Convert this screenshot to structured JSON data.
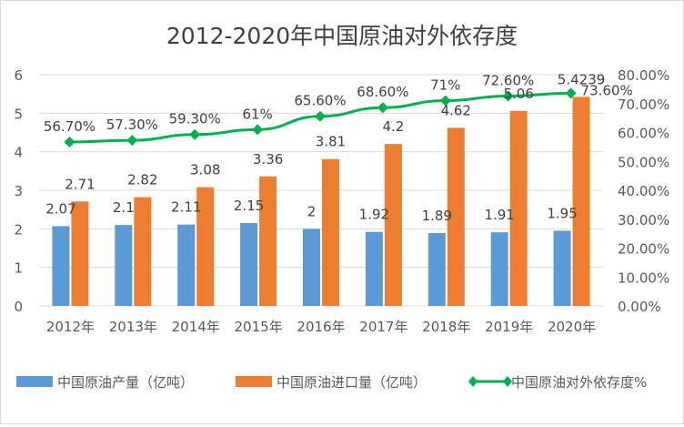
{
  "chart_data": {
    "type": "bar+line",
    "title": "2012-2020年中国原油对外依存度",
    "categories": [
      "2012年",
      "2013年",
      "2014年",
      "2015年",
      "2016年",
      "2017年",
      "2018年",
      "2019年",
      "2020年"
    ],
    "series": [
      {
        "name": "中国原油产量（亿吨）",
        "type": "bar",
        "axis": "left",
        "color": "#5b9bd5",
        "values": [
          2.07,
          2.1,
          2.11,
          2.15,
          2,
          1.92,
          1.89,
          1.91,
          1.95
        ],
        "labels": [
          "2.07",
          "2.1",
          "2.11",
          "2.15",
          "2",
          "1.92",
          "1.89",
          "1.91",
          "1.95"
        ]
      },
      {
        "name": "中国原油进口量（亿吨）",
        "type": "bar",
        "axis": "left",
        "color": "#ed7d31",
        "values": [
          2.71,
          2.82,
          3.08,
          3.36,
          3.81,
          4.2,
          4.62,
          5.06,
          5.4239
        ],
        "labels": [
          "2.71",
          "2.82",
          "3.08",
          "3.36",
          "3.81",
          "4.2",
          "4.62",
          "5.06",
          "5.4239"
        ]
      },
      {
        "name": "中国原油对外依存度%",
        "type": "line",
        "axis": "right",
        "color": "#00b050",
        "values": [
          56.7,
          57.3,
          59.3,
          61,
          65.6,
          68.6,
          71,
          72.6,
          73.6
        ],
        "labels": [
          "56.70%",
          "57.30%",
          "59.30%",
          "61%",
          "65.60%",
          "68.60%",
          "71%",
          "72.60%",
          "73.60%"
        ]
      }
    ],
    "left_axis": {
      "range": [
        0,
        6
      ],
      "ticks": [
        "0",
        "1",
        "2",
        "3",
        "4",
        "5",
        "6"
      ]
    },
    "right_axis": {
      "range": [
        0,
        80
      ],
      "ticks": [
        "0.00%",
        "10.00%",
        "20.00%",
        "30.00%",
        "40.00%",
        "50.00%",
        "60.00%",
        "70.00%",
        "80.00%"
      ]
    },
    "grid": true,
    "legend": "bottom"
  }
}
